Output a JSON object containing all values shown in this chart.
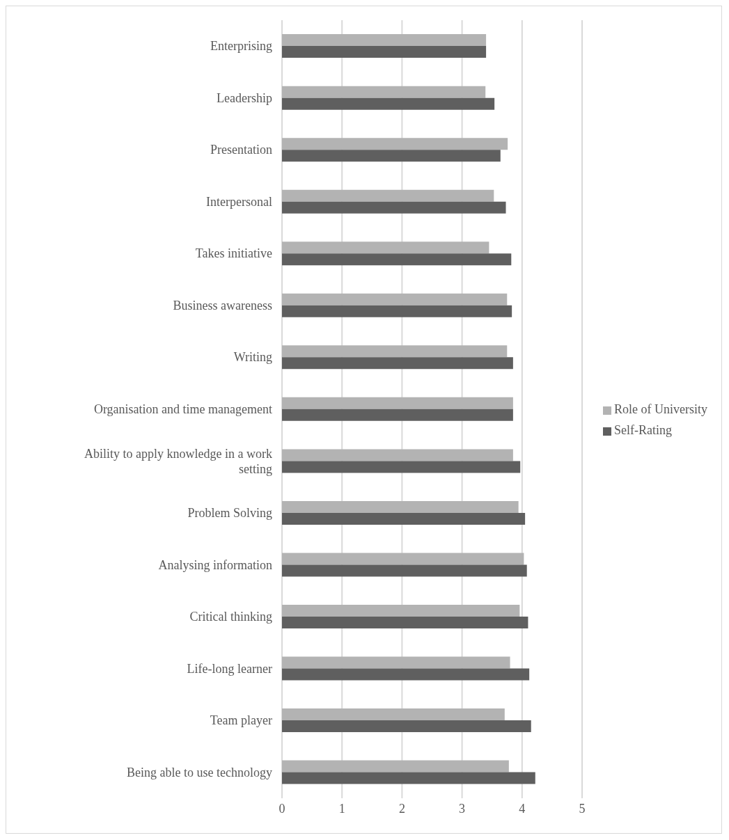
{
  "chart_data": {
    "type": "bar",
    "orientation": "horizontal",
    "categories": [
      "Enterprising",
      "Leadership",
      "Presentation ",
      "Interpersonal",
      "Takes initiative",
      "Business awareness",
      "Writing",
      "Organisation and time management",
      "Ability to apply knowledge in a work setting",
      "Problem Solving",
      "Analysing information",
      "Critical thinking",
      "Life-long learner",
      "Team player",
      "Being able to use technology"
    ],
    "series": [
      {
        "name": "Role of University",
        "color": "#b3b3b3",
        "values": [
          3.4,
          3.39,
          3.76,
          3.53,
          3.45,
          3.75,
          3.75,
          3.85,
          3.85,
          3.94,
          4.03,
          3.96,
          3.8,
          3.71,
          3.78
        ]
      },
      {
        "name": "Self-Rating",
        "color": "#5f5f5f",
        "values": [
          3.4,
          3.54,
          3.64,
          3.73,
          3.82,
          3.83,
          3.85,
          3.85,
          3.97,
          4.05,
          4.08,
          4.1,
          4.12,
          4.15,
          4.22
        ]
      }
    ],
    "xlim": [
      0,
      5
    ],
    "xticks": [
      0,
      1,
      2,
      3,
      4,
      5
    ],
    "grid": "x",
    "legend": "right"
  }
}
